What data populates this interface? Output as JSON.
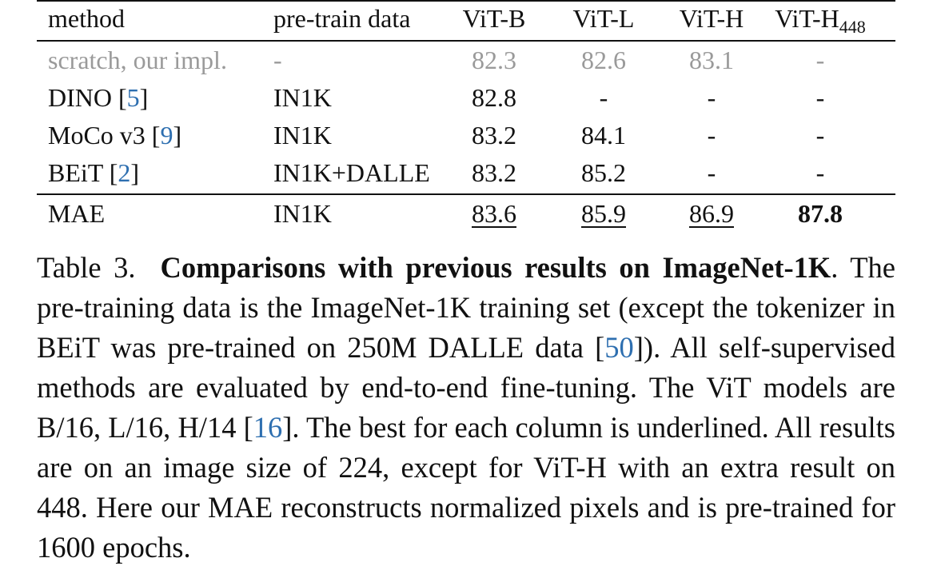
{
  "table": {
    "headers": {
      "method": "method",
      "data": "pre-train data",
      "vit_b": "ViT-B",
      "vit_l": "ViT-L",
      "vit_h": "ViT-H",
      "vit_h448_base": "ViT-H",
      "vit_h448_sub": "448"
    },
    "rows": [
      {
        "method": "scratch, our impl.",
        "ref": "",
        "data": "-",
        "vit_b": "82.3",
        "vit_l": "82.6",
        "vit_h": "83.1",
        "vit_h448": "-"
      },
      {
        "method": "DINO",
        "ref": "5",
        "data": "IN1K",
        "vit_b": "82.8",
        "vit_l": "-",
        "vit_h": "-",
        "vit_h448": "-"
      },
      {
        "method": "MoCo v3",
        "ref": "9",
        "data": "IN1K",
        "vit_b": "83.2",
        "vit_l": "84.1",
        "vit_h": "-",
        "vit_h448": "-"
      },
      {
        "method": "BEiT",
        "ref": "2",
        "data": "IN1K+DALLE",
        "vit_b": "83.2",
        "vit_l": "85.2",
        "vit_h": "-",
        "vit_h448": "-"
      },
      {
        "method": "MAE",
        "ref": "",
        "data": "IN1K",
        "vit_b": "83.6",
        "vit_l": "85.9",
        "vit_h": "86.9",
        "vit_h448": "87.8"
      }
    ]
  },
  "caption": {
    "label": "Table 3.",
    "title": "Comparisons with previous results on ImageNet-1K",
    "t1": ". The pre-training data is the ImageNet-1K training set (except the tokenizer in BEiT was pre-trained on 250M DALLE data [",
    "ref50": "50",
    "t2": "]). All self-supervised methods are evaluated by end-to-end fine-tuning. The ViT models are B/16, L/16, H/14 [",
    "ref16": "16",
    "t3": "]. The best for each column is underlined. All results are on an image size of 224, except for ViT-H with an extra result on 448. Here our MAE reconstructs normalized pixels and is pre-trained for 1600 epochs."
  },
  "colors": {
    "text": "#111111",
    "gray_row": "#9a9a9a",
    "link": "#2e6fb0"
  }
}
